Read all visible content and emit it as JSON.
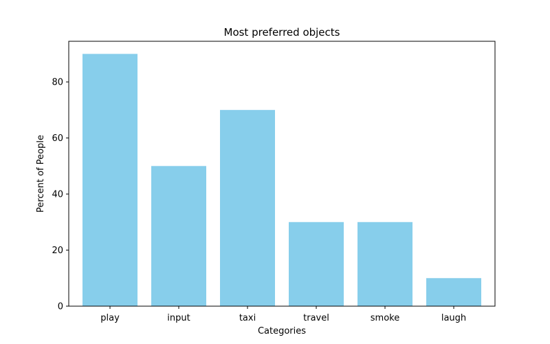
{
  "chart_data": {
    "type": "bar",
    "title": "Most preferred objects",
    "xlabel": "Categories",
    "ylabel": "Percent of People",
    "categories": [
      "play",
      "input",
      "taxi",
      "travel",
      "smoke",
      "laugh"
    ],
    "values": [
      90,
      50,
      70,
      30,
      30,
      10
    ],
    "ylim": [
      0,
      94.5
    ],
    "yticks": [
      0,
      20,
      40,
      60,
      80
    ],
    "bar_color": "#87ceeb",
    "grid": false,
    "legend": "none"
  }
}
